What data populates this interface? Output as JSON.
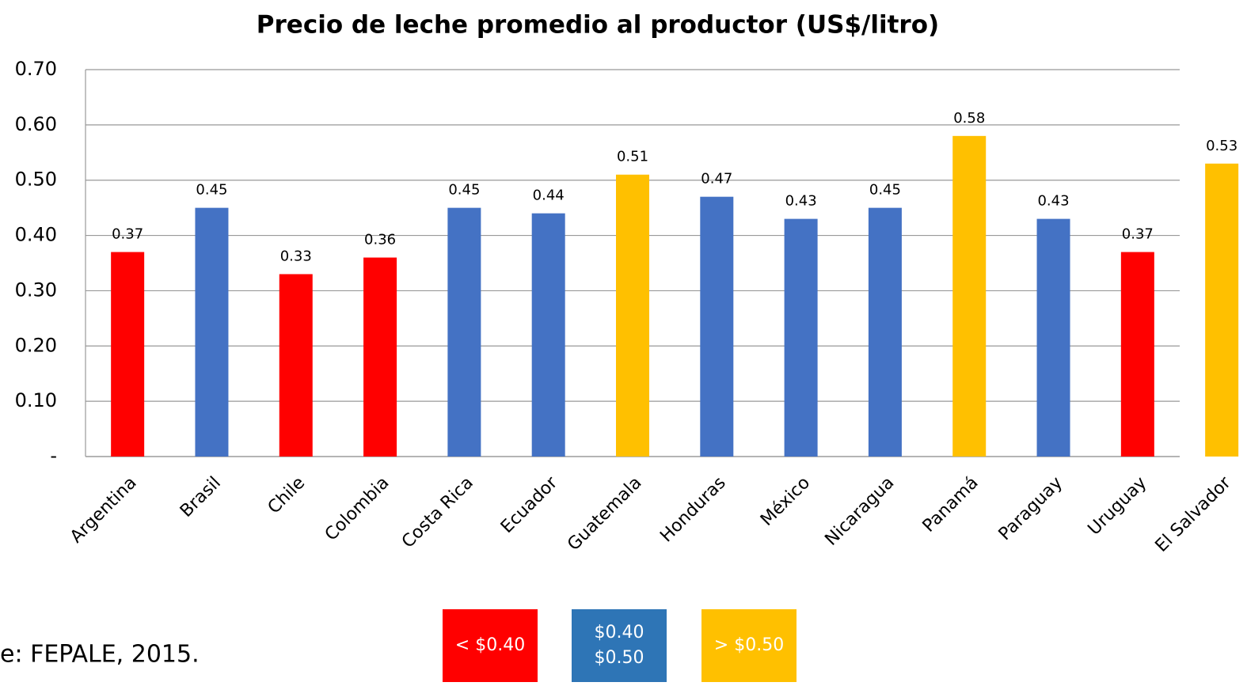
{
  "chart_data": {
    "type": "bar",
    "title": "Precio de leche promedio al productor (US$/litro)",
    "categories": [
      "Argentina",
      "Brasil",
      "Chile",
      "Colombia",
      "Costa Rica",
      "Ecuador",
      "Guatemala",
      "Honduras",
      "México",
      "Nicaragua",
      "Panamá",
      "Paraguay",
      "Uruguay",
      "El Salvador"
    ],
    "values": [
      0.37,
      0.45,
      0.33,
      0.36,
      0.45,
      0.44,
      0.51,
      0.47,
      0.43,
      0.45,
      0.58,
      0.43,
      0.37,
      0.53
    ],
    "colors": [
      "#ff0000",
      "#4472c4",
      "#ff0000",
      "#ff0000",
      "#4472c4",
      "#4472c4",
      "#ffc000",
      "#4472c4",
      "#4472c4",
      "#4472c4",
      "#ffc000",
      "#4472c4",
      "#ff0000",
      "#ffc000"
    ],
    "ylim": [
      0,
      0.7
    ],
    "yticks": [
      {
        "value": 0,
        "label": "-"
      },
      {
        "value": 0.1,
        "label": "0.10"
      },
      {
        "value": 0.2,
        "label": "0.20"
      },
      {
        "value": 0.3,
        "label": "0.30"
      },
      {
        "value": 0.4,
        "label": "0.40"
      },
      {
        "value": 0.5,
        "label": "0.50"
      },
      {
        "value": 0.6,
        "label": "0.60"
      },
      {
        "value": 0.7,
        "label": "0.70"
      }
    ],
    "grid": true,
    "legend": [
      {
        "lines": [
          "< $0.40"
        ],
        "color": "#ff0000"
      },
      {
        "lines": [
          "$0.40",
          "$0.50"
        ],
        "color": "#2e75b6"
      },
      {
        "lines": [
          "> $0.50"
        ],
        "color": "#ffc000"
      }
    ],
    "source": "e: FEPALE, 2015."
  }
}
